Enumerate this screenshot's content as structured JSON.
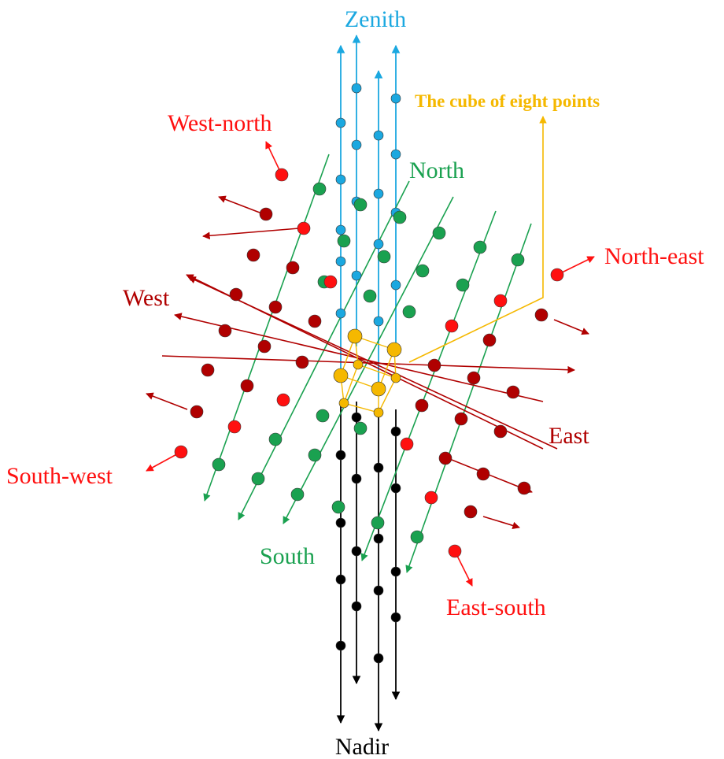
{
  "labels": {
    "zenith": "Zenith",
    "nadir": "Nadir",
    "north": "North",
    "south": "South",
    "east": "East",
    "west": "West",
    "north_east": "North-east",
    "south_west": "South-west",
    "west_north": "West-north",
    "east_south": "East-south",
    "cube": "The cube of eight points"
  },
  "colors": {
    "zenith": "#1ba8e0",
    "nadir": "#000000",
    "north_south": "#1aa150",
    "east_west": "#b00000",
    "diagonal": "#ff1010",
    "cube": "#f5b800"
  }
}
